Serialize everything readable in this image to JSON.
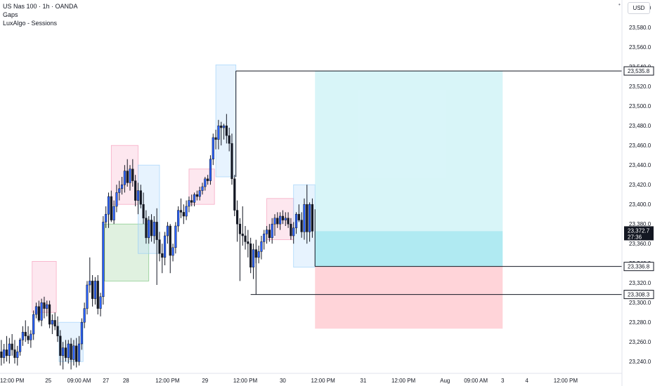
{
  "legend": {
    "symbol": "US Nas 100 · 1h · OANDA",
    "indicator1": "Gaps",
    "indicator2": "LuxAlgo - Sessions"
  },
  "currency": "USD",
  "colors": {
    "up": "#2962ff",
    "down": "#131722",
    "session_pink": "#f8bbd0",
    "session_blue": "#bbdefb",
    "session_green": "#a5d6a7",
    "target": "#b2ebf2",
    "stop": "#ffcdd2"
  },
  "chart_data": {
    "type": "candlestick",
    "y_axis": {
      "ylim": [
        23228,
        23608
      ],
      "ticks": [
        23240,
        23260,
        23280,
        23300,
        23320,
        23340,
        23360,
        23380,
        23400,
        23420,
        23440,
        23460,
        23480,
        23500,
        23520,
        23540,
        23560,
        23580,
        23600
      ],
      "tick_labels": [
        "23,240.0",
        "23,260.0",
        "23,280.0",
        "23,300.0",
        "23,320.0",
        "23,340.0",
        "23,360.0",
        "23,380.0",
        "23,400.0",
        "23,420.0",
        "23,440.0",
        "23,460.0",
        "23,480.0",
        "23,500.0",
        "23,520.0",
        "23,540.0",
        "23,560.0",
        "23,580.0",
        "23,600.0"
      ]
    },
    "x_axis": {
      "xlim": [
        0,
        232
      ],
      "labels": [
        {
          "x": 4.5,
          "label": "12:00 PM"
        },
        {
          "x": 18,
          "label": "25"
        },
        {
          "x": 29.5,
          "label": "09:00 AM"
        },
        {
          "x": 39.5,
          "label": "27"
        },
        {
          "x": 47,
          "label": "28"
        },
        {
          "x": 62.5,
          "label": "12:00 PM"
        },
        {
          "x": 76.5,
          "label": "29"
        },
        {
          "x": 91.5,
          "label": "12:00 PM"
        },
        {
          "x": 105.5,
          "label": "30"
        },
        {
          "x": 120.5,
          "label": "12:00 PM"
        },
        {
          "x": 135.5,
          "label": "31"
        },
        {
          "x": 150.5,
          "label": "12:00 PM"
        },
        {
          "x": 166,
          "label": "Aug"
        },
        {
          "x": 177.5,
          "label": "09:00 AM"
        },
        {
          "x": 187.5,
          "label": "3"
        },
        {
          "x": 196.5,
          "label": "4"
        },
        {
          "x": 211,
          "label": "12:00 PM"
        }
      ]
    },
    "candles": [
      {
        "o": 23250,
        "h": 23262,
        "l": 23236,
        "c": 23244
      },
      {
        "o": 23244,
        "h": 23258,
        "l": 23238,
        "c": 23252
      },
      {
        "o": 23252,
        "h": 23266,
        "l": 23240,
        "c": 23246
      },
      {
        "o": 23246,
        "h": 23264,
        "l": 23238,
        "c": 23258
      },
      {
        "o": 23258,
        "h": 23268,
        "l": 23246,
        "c": 23252
      },
      {
        "o": 23252,
        "h": 23262,
        "l": 23238,
        "c": 23244
      },
      {
        "o": 23244,
        "h": 23256,
        "l": 23236,
        "c": 23250
      },
      {
        "o": 23250,
        "h": 23264,
        "l": 23246,
        "c": 23262
      },
      {
        "o": 23262,
        "h": 23276,
        "l": 23256,
        "c": 23270
      },
      {
        "o": 23270,
        "h": 23282,
        "l": 23260,
        "c": 23266
      },
      {
        "o": 23266,
        "h": 23276,
        "l": 23258,
        "c": 23262
      },
      {
        "o": 23262,
        "h": 23272,
        "l": 23254,
        "c": 23268
      },
      {
        "o": 23268,
        "h": 23292,
        "l": 23262,
        "c": 23288
      },
      {
        "o": 23288,
        "h": 23300,
        "l": 23284,
        "c": 23296
      },
      {
        "o": 23296,
        "h": 23302,
        "l": 23280,
        "c": 23282
      },
      {
        "o": 23282,
        "h": 23304,
        "l": 23276,
        "c": 23300
      },
      {
        "o": 23300,
        "h": 23306,
        "l": 23284,
        "c": 23294
      },
      {
        "o": 23294,
        "h": 23302,
        "l": 23286,
        "c": 23298
      },
      {
        "o": 23298,
        "h": 23302,
        "l": 23274,
        "c": 23278
      },
      {
        "o": 23278,
        "h": 23288,
        "l": 23268,
        "c": 23282
      },
      {
        "o": 23282,
        "h": 23290,
        "l": 23272,
        "c": 23276
      },
      {
        "o": 23276,
        "h": 23286,
        "l": 23260,
        "c": 23266
      },
      {
        "o": 23266,
        "h": 23272,
        "l": 23236,
        "c": 23246
      },
      {
        "o": 23246,
        "h": 23260,
        "l": 23232,
        "c": 23254
      },
      {
        "o": 23254,
        "h": 23262,
        "l": 23240,
        "c": 23244
      },
      {
        "o": 23244,
        "h": 23262,
        "l": 23238,
        "c": 23258
      },
      {
        "o": 23258,
        "h": 23264,
        "l": 23232,
        "c": 23242
      },
      {
        "o": 23242,
        "h": 23262,
        "l": 23236,
        "c": 23256
      },
      {
        "o": 23256,
        "h": 23264,
        "l": 23234,
        "c": 23240
      },
      {
        "o": 23240,
        "h": 23266,
        "l": 23236,
        "c": 23258
      },
      {
        "o": 23258,
        "h": 23284,
        "l": 23252,
        "c": 23280
      },
      {
        "o": 23280,
        "h": 23300,
        "l": 23274,
        "c": 23294
      },
      {
        "o": 23294,
        "h": 23322,
        "l": 23288,
        "c": 23318
      },
      {
        "o": 23318,
        "h": 23346,
        "l": 23310,
        "c": 23322
      },
      {
        "o": 23322,
        "h": 23328,
        "l": 23296,
        "c": 23304
      },
      {
        "o": 23304,
        "h": 23326,
        "l": 23298,
        "c": 23322
      },
      {
        "o": 23322,
        "h": 23328,
        "l": 23288,
        "c": 23294
      },
      {
        "o": 23294,
        "h": 23310,
        "l": 23286,
        "c": 23306
      },
      {
        "o": 23306,
        "h": 23388,
        "l": 23298,
        "c": 23382
      },
      {
        "o": 23382,
        "h": 23398,
        "l": 23376,
        "c": 23390
      },
      {
        "o": 23390,
        "h": 23412,
        "l": 23376,
        "c": 23408
      },
      {
        "o": 23408,
        "h": 23414,
        "l": 23382,
        "c": 23384
      },
      {
        "o": 23384,
        "h": 23404,
        "l": 23380,
        "c": 23398
      },
      {
        "o": 23398,
        "h": 23420,
        "l": 23392,
        "c": 23412
      },
      {
        "o": 23412,
        "h": 23424,
        "l": 23404,
        "c": 23416
      },
      {
        "o": 23416,
        "h": 23428,
        "l": 23410,
        "c": 23420
      },
      {
        "o": 23420,
        "h": 23440,
        "l": 23412,
        "c": 23434
      },
      {
        "o": 23434,
        "h": 23446,
        "l": 23418,
        "c": 23422
      },
      {
        "o": 23422,
        "h": 23440,
        "l": 23414,
        "c": 23436
      },
      {
        "o": 23436,
        "h": 23446,
        "l": 23418,
        "c": 23424
      },
      {
        "o": 23424,
        "h": 23430,
        "l": 23398,
        "c": 23404
      },
      {
        "o": 23404,
        "h": 23422,
        "l": 23390,
        "c": 23414
      },
      {
        "o": 23414,
        "h": 23420,
        "l": 23396,
        "c": 23400
      },
      {
        "o": 23400,
        "h": 23412,
        "l": 23380,
        "c": 23386
      },
      {
        "o": 23386,
        "h": 23394,
        "l": 23360,
        "c": 23366
      },
      {
        "o": 23366,
        "h": 23388,
        "l": 23360,
        "c": 23384
      },
      {
        "o": 23384,
        "h": 23390,
        "l": 23362,
        "c": 23368
      },
      {
        "o": 23368,
        "h": 23388,
        "l": 23360,
        "c": 23382
      },
      {
        "o": 23382,
        "h": 23396,
        "l": 23318,
        "c": 23364
      },
      {
        "o": 23364,
        "h": 23372,
        "l": 23342,
        "c": 23350
      },
      {
        "o": 23350,
        "h": 23360,
        "l": 23330,
        "c": 23346
      },
      {
        "o": 23346,
        "h": 23372,
        "l": 23338,
        "c": 23368
      },
      {
        "o": 23368,
        "h": 23382,
        "l": 23360,
        "c": 23378
      },
      {
        "o": 23378,
        "h": 23380,
        "l": 23330,
        "c": 23348
      },
      {
        "o": 23348,
        "h": 23360,
        "l": 23342,
        "c": 23356
      },
      {
        "o": 23356,
        "h": 23382,
        "l": 23350,
        "c": 23378
      },
      {
        "o": 23378,
        "h": 23398,
        "l": 23372,
        "c": 23394
      },
      {
        "o": 23394,
        "h": 23406,
        "l": 23386,
        "c": 23392
      },
      {
        "o": 23392,
        "h": 23400,
        "l": 23380,
        "c": 23388
      },
      {
        "o": 23388,
        "h": 23404,
        "l": 23384,
        "c": 23398
      },
      {
        "o": 23398,
        "h": 23408,
        "l": 23392,
        "c": 23404
      },
      {
        "o": 23404,
        "h": 23410,
        "l": 23398,
        "c": 23402
      },
      {
        "o": 23402,
        "h": 23412,
        "l": 23398,
        "c": 23410
      },
      {
        "o": 23410,
        "h": 23414,
        "l": 23404,
        "c": 23408
      },
      {
        "o": 23408,
        "h": 23418,
        "l": 23404,
        "c": 23414
      },
      {
        "o": 23414,
        "h": 23422,
        "l": 23410,
        "c": 23418
      },
      {
        "o": 23418,
        "h": 23428,
        "l": 23414,
        "c": 23426
      },
      {
        "o": 23426,
        "h": 23430,
        "l": 23420,
        "c": 23424
      },
      {
        "o": 23424,
        "h": 23450,
        "l": 23420,
        "c": 23446
      },
      {
        "o": 23446,
        "h": 23472,
        "l": 23440,
        "c": 23468
      },
      {
        "o": 23468,
        "h": 23476,
        "l": 23456,
        "c": 23466
      },
      {
        "o": 23466,
        "h": 23486,
        "l": 23456,
        "c": 23480
      },
      {
        "o": 23480,
        "h": 23484,
        "l": 23460,
        "c": 23478
      },
      {
        "o": 23478,
        "h": 23482,
        "l": 23466,
        "c": 23480
      },
      {
        "o": 23480,
        "h": 23492,
        "l": 23462,
        "c": 23470
      },
      {
        "o": 23470,
        "h": 23478,
        "l": 23454,
        "c": 23462
      },
      {
        "o": 23462,
        "h": 23472,
        "l": 23420,
        "c": 23426
      },
      {
        "o": 23426,
        "h": 23430,
        "l": 23388,
        "c": 23394
      },
      {
        "o": 23394,
        "h": 23404,
        "l": 23362,
        "c": 23380
      },
      {
        "o": 23380,
        "h": 23386,
        "l": 23322,
        "c": 23370
      },
      {
        "o": 23370,
        "h": 23398,
        "l": 23358,
        "c": 23368
      },
      {
        "o": 23368,
        "h": 23378,
        "l": 23354,
        "c": 23362
      },
      {
        "o": 23362,
        "h": 23374,
        "l": 23346,
        "c": 23360
      },
      {
        "o": 23360,
        "h": 23366,
        "l": 23330,
        "c": 23336
      },
      {
        "o": 23336,
        "h": 23360,
        "l": 23324,
        "c": 23354
      },
      {
        "o": 23354,
        "h": 23364,
        "l": 23340,
        "c": 23346
      },
      {
        "o": 23346,
        "h": 23358,
        "l": 23340,
        "c": 23352
      },
      {
        "o": 23352,
        "h": 23368,
        "l": 23344,
        "c": 23362
      },
      {
        "o": 23362,
        "h": 23374,
        "l": 23354,
        "c": 23370
      },
      {
        "o": 23370,
        "h": 23378,
        "l": 23360,
        "c": 23374
      },
      {
        "o": 23374,
        "h": 23380,
        "l": 23362,
        "c": 23366
      },
      {
        "o": 23366,
        "h": 23386,
        "l": 23360,
        "c": 23380
      },
      {
        "o": 23380,
        "h": 23390,
        "l": 23368,
        "c": 23386
      },
      {
        "o": 23386,
        "h": 23392,
        "l": 23376,
        "c": 23380
      },
      {
        "o": 23380,
        "h": 23392,
        "l": 23374,
        "c": 23388
      },
      {
        "o": 23388,
        "h": 23394,
        "l": 23380,
        "c": 23384
      },
      {
        "o": 23384,
        "h": 23392,
        "l": 23378,
        "c": 23386
      },
      {
        "o": 23386,
        "h": 23392,
        "l": 23376,
        "c": 23380
      },
      {
        "o": 23380,
        "h": 23386,
        "l": 23364,
        "c": 23368
      },
      {
        "o": 23368,
        "h": 23382,
        "l": 23360,
        "c": 23376
      },
      {
        "o": 23376,
        "h": 23392,
        "l": 23370,
        "c": 23390
      },
      {
        "o": 23390,
        "h": 23400,
        "l": 23382,
        "c": 23384
      },
      {
        "o": 23384,
        "h": 23392,
        "l": 23366,
        "c": 23372
      },
      {
        "o": 23372,
        "h": 23406,
        "l": 23364,
        "c": 23400
      },
      {
        "o": 23400,
        "h": 23420,
        "l": 23360,
        "c": 23372
      },
      {
        "o": 23372,
        "h": 23402,
        "l": 23362,
        "c": 23400
      },
      {
        "o": 23400,
        "h": 23406,
        "l": 23366,
        "c": 23372.7
      }
    ],
    "session_boxes": [
      {
        "kind": "pink",
        "x0": 12,
        "x1": 21,
        "y0": 23290,
        "y1": 23342
      },
      {
        "kind": "blue",
        "x0": 22,
        "x1": 31,
        "y0": 23240,
        "y1": 23280
      },
      {
        "kind": "green",
        "x0": 39,
        "x1": 55.5,
        "y0": 23322,
        "y1": 23380
      },
      {
        "kind": "pink",
        "x0": 41.5,
        "x1": 51.5,
        "y0": 23400,
        "y1": 23460
      },
      {
        "kind": "blue",
        "x0": 51.5,
        "x1": 59.5,
        "y0": 23350,
        "y1": 23440
      },
      {
        "kind": "pink",
        "x0": 70.5,
        "x1": 80,
        "y0": 23400,
        "y1": 23436
      },
      {
        "kind": "blue",
        "x0": 80.5,
        "x1": 88,
        "y0": 23428,
        "y1": 23542
      },
      {
        "kind": "pink",
        "x0": 99.5,
        "x1": 109.5,
        "y0": 23364,
        "y1": 23406
      },
      {
        "kind": "blue",
        "x0": 109.5,
        "x1": 117.5,
        "y0": 23336,
        "y1": 23420
      }
    ],
    "position": {
      "x0": 117.5,
      "x1": 187.5,
      "entry": 23336.8,
      "target": 23535.8,
      "stop": 23273.5
    },
    "levels": [
      {
        "value": 23535.8,
        "label": "23,535.8",
        "x0": 88
      },
      {
        "value": 23336.8,
        "label": "23,336.8",
        "x0": 117.5
      },
      {
        "value": 23308.3,
        "label": "23,308.3",
        "x0": 93.5
      }
    ],
    "current_price": {
      "value": 23372.7,
      "label": "23,372.7",
      "countdown": "27:36"
    }
  }
}
